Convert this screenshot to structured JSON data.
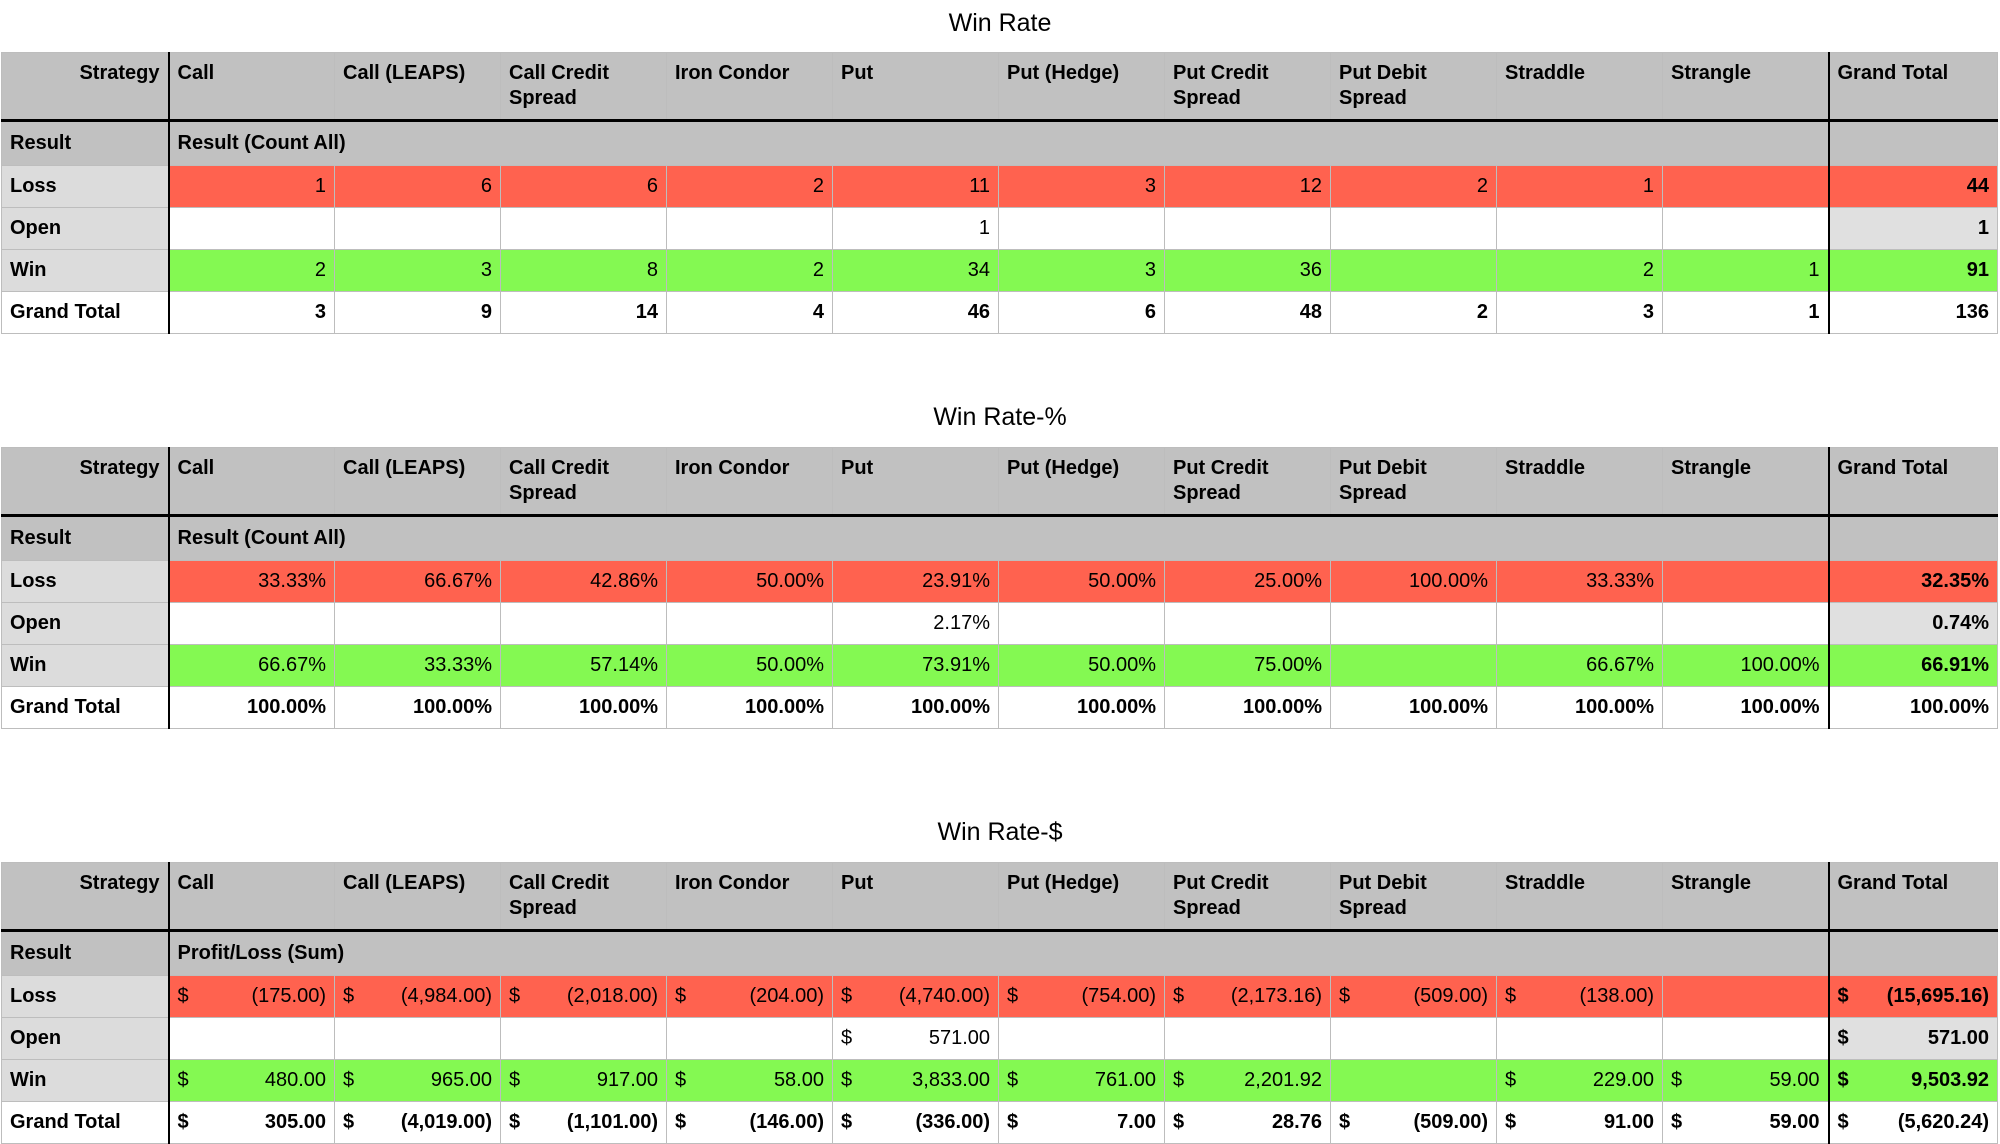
{
  "header_labels": {
    "strategy": "Strategy",
    "result": "Result",
    "grand_total": "Grand Total",
    "columns": [
      "Call",
      "Call (LEAPS)",
      "Call Credit Spread",
      "Iron Condor",
      "Put",
      "Put (Hedge)",
      "Put Credit Spread",
      "Put Debit Spread",
      "Straddle",
      "Strangle"
    ]
  },
  "tables": [
    {
      "title": "Win Rate",
      "measure": "Result (Count All)",
      "currency": "",
      "rows": [
        {
          "label": "Loss",
          "values": [
            "1",
            "6",
            "6",
            "2",
            "11",
            "3",
            "12",
            "2",
            "1",
            ""
          ],
          "total": "44"
        },
        {
          "label": "Open",
          "values": [
            "",
            "",
            "",
            "",
            "1",
            "",
            "",
            "",
            "",
            ""
          ],
          "total": "1"
        },
        {
          "label": "Win",
          "values": [
            "2",
            "3",
            "8",
            "2",
            "34",
            "3",
            "36",
            "",
            "2",
            "1"
          ],
          "total": "91"
        },
        {
          "label": "Grand Total",
          "values": [
            "3",
            "9",
            "14",
            "4",
            "46",
            "6",
            "48",
            "2",
            "3",
            "1"
          ],
          "total": "136"
        }
      ]
    },
    {
      "title": "Win Rate-%",
      "measure": "Result (Count All)",
      "currency": "",
      "rows": [
        {
          "label": "Loss",
          "values": [
            "33.33%",
            "66.67%",
            "42.86%",
            "50.00%",
            "23.91%",
            "50.00%",
            "25.00%",
            "100.00%",
            "33.33%",
            ""
          ],
          "total": "32.35%"
        },
        {
          "label": "Open",
          "values": [
            "",
            "",
            "",
            "",
            "2.17%",
            "",
            "",
            "",
            "",
            ""
          ],
          "total": "0.74%"
        },
        {
          "label": "Win",
          "values": [
            "66.67%",
            "33.33%",
            "57.14%",
            "50.00%",
            "73.91%",
            "50.00%",
            "75.00%",
            "",
            "66.67%",
            "100.00%"
          ],
          "total": "66.91%"
        },
        {
          "label": "Grand Total",
          "values": [
            "100.00%",
            "100.00%",
            "100.00%",
            "100.00%",
            "100.00%",
            "100.00%",
            "100.00%",
            "100.00%",
            "100.00%",
            "100.00%"
          ],
          "total": "100.00%"
        }
      ]
    },
    {
      "title": "Win Rate-$",
      "measure": "Profit/Loss (Sum)",
      "currency": "$",
      "rows": [
        {
          "label": "Loss",
          "values": [
            "(175.00)",
            "(4,984.00)",
            "(2,018.00)",
            "(204.00)",
            "(4,740.00)",
            "(754.00)",
            "(2,173.16)",
            "(509.00)",
            "(138.00)",
            ""
          ],
          "total": "(15,695.16)"
        },
        {
          "label": "Open",
          "values": [
            "",
            "",
            "",
            "",
            "571.00",
            "",
            "",
            "",
            "",
            ""
          ],
          "total": "571.00"
        },
        {
          "label": "Win",
          "values": [
            "480.00",
            "965.00",
            "917.00",
            "58.00",
            "3,833.00",
            "761.00",
            "2,201.92",
            "",
            "229.00",
            "59.00"
          ],
          "total": "9,503.92"
        },
        {
          "label": "Grand Total",
          "values": [
            "305.00",
            "(4,019.00)",
            "(1,101.00)",
            "(146.00)",
            "(336.00)",
            "7.00",
            "28.76",
            "(509.00)",
            "91.00",
            "59.00"
          ],
          "total": "(5,620.24)"
        }
      ]
    }
  ]
}
